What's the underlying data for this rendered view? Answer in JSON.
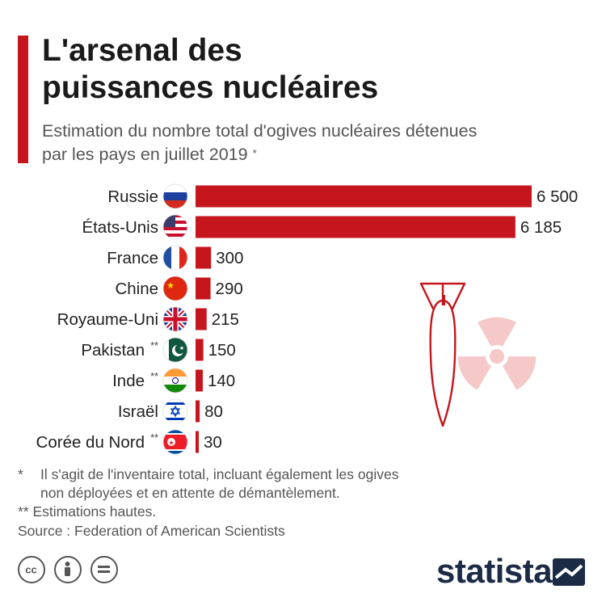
{
  "title_lines": [
    "L'arsenal des",
    "puissances nucléaires"
  ],
  "subtitle_lines": [
    "Estimation du nombre total d'ogives nucléaires détenues",
    "par les pays en juillet 2019"
  ],
  "subtitle_mark": "*",
  "colors": {
    "accent": "#c4161c",
    "bar": "#c4161c",
    "bomb_outline": "#c4161c",
    "radiation": "#f6c9c9",
    "brand": "#1b2a45"
  },
  "chart_data": {
    "type": "bar",
    "orientation": "horizontal",
    "categories": [
      "Russie",
      "États-Unis",
      "France",
      "Chine",
      "Royaume-Uni",
      "Pakistan",
      "Inde",
      "Israël",
      "Corée du Nord"
    ],
    "category_marks": [
      "",
      "",
      "",
      "",
      "",
      "**",
      "**",
      "",
      "**"
    ],
    "values": [
      6500,
      6185,
      300,
      290,
      215,
      150,
      140,
      80,
      30
    ],
    "value_labels": [
      "6 500",
      "6 185",
      "300",
      "290",
      "215",
      "150",
      "140",
      "80",
      "30"
    ],
    "flags": [
      "russia-flag-icon",
      "usa-flag-icon",
      "france-flag-icon",
      "china-flag-icon",
      "uk-flag-icon",
      "pakistan-flag-icon",
      "india-flag-icon",
      "israel-flag-icon",
      "north-korea-flag-icon"
    ],
    "xlim": [
      0,
      6500
    ],
    "grid": false,
    "legend": "none"
  },
  "decor": {
    "bomb": "bomb-icon",
    "radiation": "radiation-symbol-icon"
  },
  "footnotes": {
    "note1_mark": "*",
    "note1_line1": "Il s'agit de l'inventaire total, incluant également les ogives",
    "note1_line2": "non déployées et en attente de démantèlement.",
    "note2_mark": "**",
    "note2_text": "Estimations hautes.",
    "source": "Source : Federation of American Scientists"
  },
  "license_icons": [
    "cc-icon",
    "attribution-icon",
    "no-derivatives-icon"
  ],
  "brand": {
    "name": "statista",
    "icon": "statista-logo-icon"
  }
}
